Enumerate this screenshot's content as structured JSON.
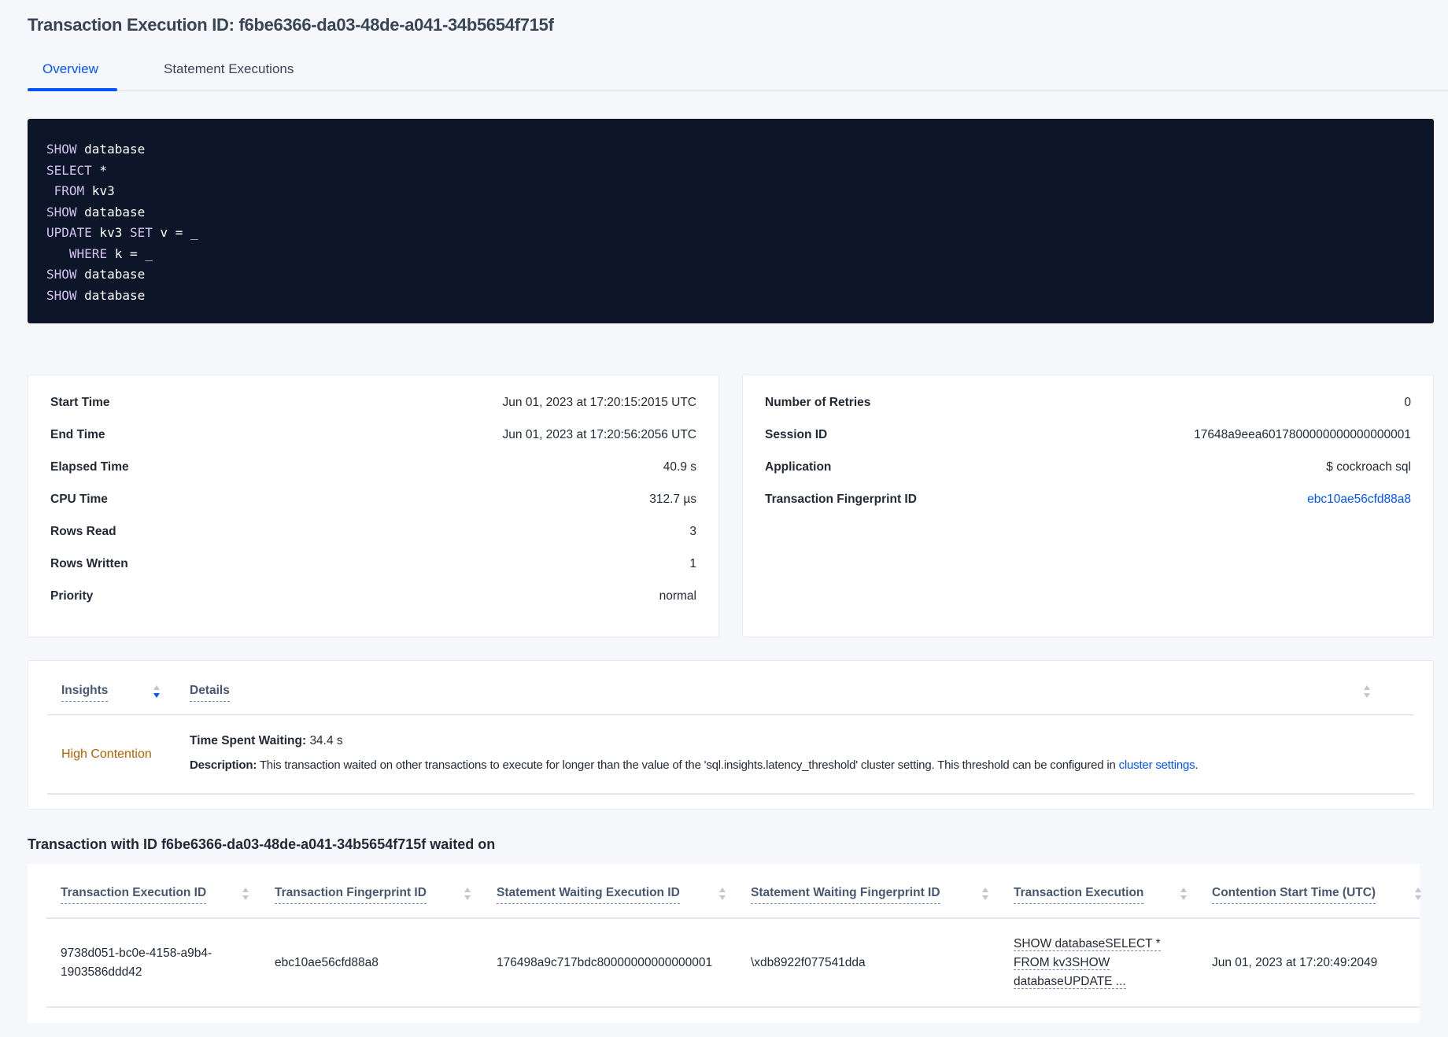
{
  "header": {
    "title": "Transaction Execution ID: f6be6366-da03-48de-a041-34b5654f715f"
  },
  "tabs": [
    {
      "label": "Overview",
      "active": true
    },
    {
      "label": "Statement Executions",
      "active": false
    }
  ],
  "sql": {
    "lines": [
      "SHOW database",
      "SELECT *",
      " FROM kv3",
      "SHOW database",
      "UPDATE kv3 SET v = _",
      "   WHERE k = _",
      "SHOW database",
      "SHOW database"
    ]
  },
  "summary_left": [
    {
      "label": "Start Time",
      "value": "Jun 01, 2023 at 17:20:15:2015 UTC"
    },
    {
      "label": "End Time",
      "value": "Jun 01, 2023 at 17:20:56:2056 UTC"
    },
    {
      "label": "Elapsed Time",
      "value": "40.9 s"
    },
    {
      "label": "CPU Time",
      "value": "312.7 µs"
    },
    {
      "label": "Rows Read",
      "value": "3"
    },
    {
      "label": "Rows Written",
      "value": "1"
    },
    {
      "label": "Priority",
      "value": "normal"
    }
  ],
  "summary_right": [
    {
      "label": "Number of Retries",
      "value": "0"
    },
    {
      "label": "Session ID",
      "value": "17648a9eea6017800000000000000001"
    },
    {
      "label": "Application",
      "value": "$ cockroach sql"
    },
    {
      "label": "Transaction Fingerprint ID",
      "value": "ebc10ae56cfd88a8"
    }
  ],
  "insights": {
    "columns": [
      "Insights",
      "Details"
    ],
    "row": {
      "insight": "High Contention",
      "time_label": "Time Spent Waiting:",
      "time_value": "34.4 s",
      "desc_label": "Description:",
      "desc_text": "This transaction waited on other transactions to execute for longer than the value of the 'sql.insights.latency_threshold' cluster setting. This threshold can be configured in",
      "desc_link": "cluster settings",
      "desc_end": "."
    },
    "colors": {
      "insight": "#b35f00",
      "link": "#0055ff"
    }
  },
  "waited_on": {
    "heading": "Transaction with ID f6be6366-da03-48de-a041-34b5654f715f waited on",
    "columns": [
      "Transaction Execution ID",
      "Transaction Fingerprint ID",
      "Statement Waiting Execution ID",
      "Statement Waiting Fingerprint ID",
      "Transaction Execution",
      "Contention Start Time (UTC)"
    ],
    "rows": [
      {
        "txn_exec_id_1": "9738d051-bc0e-4158-a9b4-",
        "txn_exec_id_2": "1903586ddd42",
        "txn_fp_id": "ebc10ae56cfd88a8",
        "stmt_exec_id": "176498a9c717bdc80000000000000001",
        "stmt_fp_id": "\\xdb8922f077541dda",
        "txn_exec_1": "SHOW databaseSELECT *",
        "txn_exec_2": "FROM kv3SHOW",
        "txn_exec_3": "databaseUPDATE ...",
        "start_time": "Jun 01, 2023 at 17:20:49:2049"
      }
    ]
  }
}
